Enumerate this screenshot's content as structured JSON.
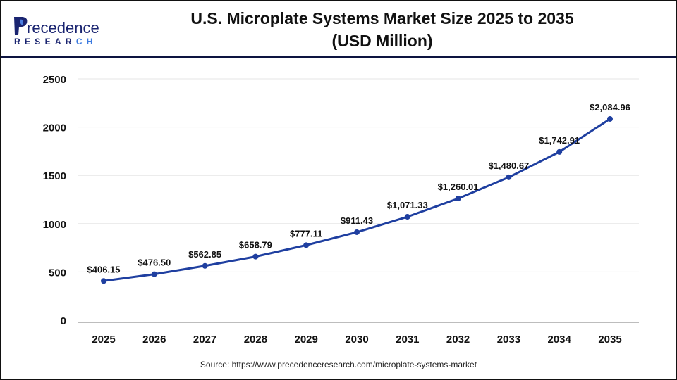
{
  "logo": {
    "text_top": "Precedence",
    "text_bottom": "RESEARCH"
  },
  "title_line1": "U.S. Microplate Systems Market Size 2025 to 2035",
  "title_line2": "(USD Million)",
  "source": "Source: https://www.precedenceresearch.com/microplate-systems-market",
  "colors": {
    "line": "#1f3fa0",
    "header_rule": "#0d1440",
    "grid": "#e6e6e6"
  },
  "chart_data": {
    "type": "line",
    "title": "U.S. Microplate Systems Market Size 2025 to 2035 (USD Million)",
    "categories": [
      "2025",
      "2026",
      "2027",
      "2028",
      "2029",
      "2030",
      "2031",
      "2032",
      "2033",
      "2034",
      "2035"
    ],
    "values": [
      406.15,
      476.5,
      562.85,
      658.79,
      777.11,
      911.43,
      1071.33,
      1260.01,
      1480.67,
      1742.91,
      2084.96
    ],
    "data_labels": [
      "$406.15",
      "$476.50",
      "$562.85",
      "$658.79",
      "$777.11",
      "$911.43",
      "$1,071.33",
      "$1,260.01",
      "$1,480.67",
      "$1,742.91",
      "$2,084.96"
    ],
    "yticks": [
      "0",
      "500",
      "1000",
      "1500",
      "2000",
      "2500"
    ],
    "ylim": [
      0,
      2500
    ],
    "grid": true,
    "legend": "none"
  }
}
